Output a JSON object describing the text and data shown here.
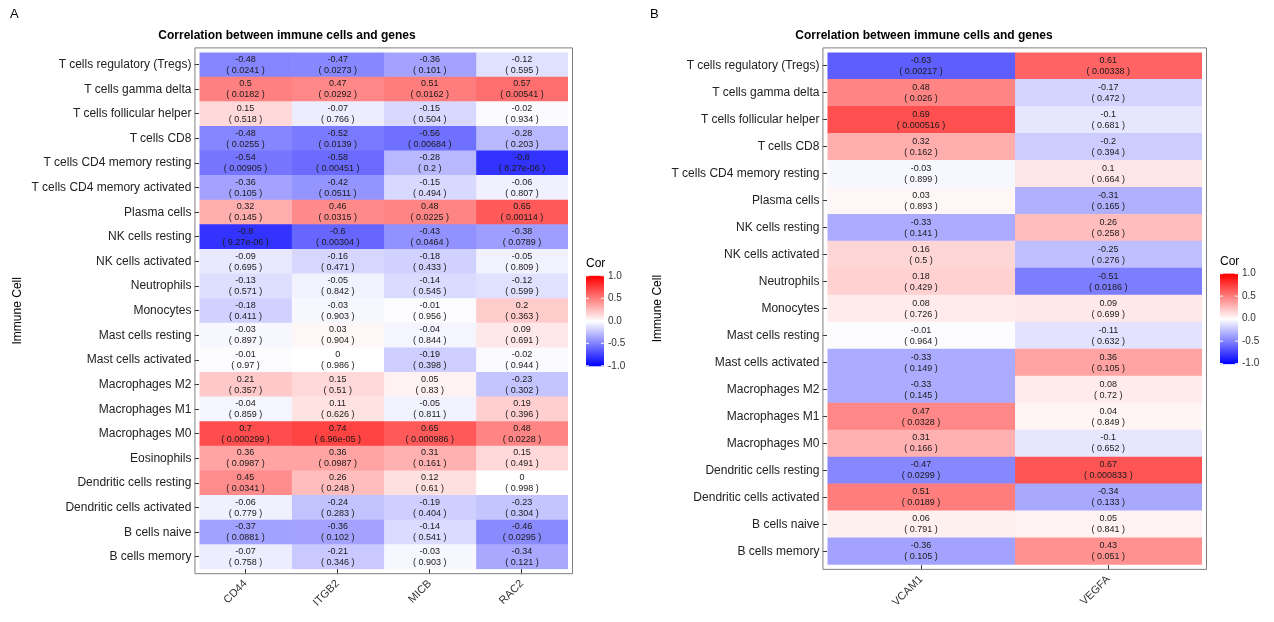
{
  "chart_data": [
    {
      "type": "heatmap",
      "title": "Correlation between immune cells and genes",
      "ylabel": "Immune Cell",
      "clabel": "Cor",
      "annotations": [
        "A"
      ],
      "categories": [
        "CD44",
        "ITGB2",
        "MICB",
        "RAC2"
      ],
      "y_categories": [
        "T cells regulatory (Tregs)",
        "T cells gamma delta",
        "T cells follicular helper",
        "T cells CD8",
        "T cells CD4 memory resting",
        "T cells CD4 memory activated",
        "Plasma cells",
        "NK cells resting",
        "NK cells activated",
        "Neutrophils",
        "Monocytes",
        "Mast cells resting",
        "Mast cells activated",
        "Macrophages M2",
        "Macrophages M1",
        "Macrophages M0",
        "Eosinophils",
        "Dendritic cells resting",
        "Dendritic cells activated",
        "B cells naive",
        "B cells memory"
      ],
      "cells": [
        [
          -0.48,
          -0.47,
          -0.36,
          -0.12
        ],
        [
          0.5,
          0.47,
          0.51,
          0.57
        ],
        [
          0.15,
          -0.07,
          -0.15,
          -0.02
        ],
        [
          -0.48,
          -0.52,
          -0.56,
          -0.28
        ],
        [
          -0.54,
          -0.58,
          -0.28,
          -0.8
        ],
        [
          -0.36,
          -0.42,
          -0.15,
          -0.06
        ],
        [
          0.32,
          0.46,
          0.48,
          0.65
        ],
        [
          -0.8,
          -0.6,
          -0.43,
          -0.38
        ],
        [
          -0.09,
          -0.16,
          -0.18,
          -0.05
        ],
        [
          -0.13,
          -0.05,
          -0.14,
          -0.12
        ],
        [
          -0.18,
          -0.03,
          -0.01,
          0.2
        ],
        [
          -0.03,
          0.03,
          -0.04,
          0.09
        ],
        [
          -0.01,
          0,
          -0.19,
          -0.02
        ],
        [
          0.21,
          0.15,
          0.05,
          -0.23
        ],
        [
          -0.04,
          0.11,
          -0.05,
          0.19
        ],
        [
          0.7,
          0.74,
          0.65,
          0.48
        ],
        [
          0.36,
          0.36,
          0.31,
          0.15
        ],
        [
          0.45,
          0.26,
          0.12,
          0
        ],
        [
          -0.06,
          -0.24,
          -0.19,
          -0.23
        ],
        [
          -0.37,
          -0.36,
          -0.14,
          -0.46
        ],
        [
          -0.07,
          -0.21,
          -0.03,
          -0.34
        ]
      ],
      "cell_labels": [
        [
          "-0.48\n( 0.0241 )",
          "-0.47\n( 0.0273 )",
          "-0.36\n( 0.101 )",
          "-0.12\n( 0.595 )"
        ],
        [
          "0.5\n( 0.0182 )",
          "0.47\n( 0.0292 )",
          "0.51\n( 0.0162 )",
          "0.57\n( 0.00541 )"
        ],
        [
          "0.15\n( 0.518 )",
          "-0.07\n( 0.766 )",
          "-0.15\n( 0.504 )",
          "-0.02\n( 0.934 )"
        ],
        [
          "-0.48\n( 0.0255 )",
          "-0.52\n( 0.0139 )",
          "-0.56\n( 0.00684 )",
          "-0.28\n( 0.203 )"
        ],
        [
          "-0.54\n( 0.00905 )",
          "-0.58\n( 0.00451 )",
          "-0.28\n( 0.2 )",
          "-0.8\n( 8.27e-06 )"
        ],
        [
          "-0.36\n( 0.105 )",
          "-0.42\n( 0.0511 )",
          "-0.15\n( 0.494 )",
          "-0.06\n( 0.807 )"
        ],
        [
          "0.32\n( 0.145 )",
          "0.46\n( 0.0315 )",
          "0.48\n( 0.0225 )",
          "0.65\n( 0.00114 )"
        ],
        [
          "-0.8\n( 9.27e-06 )",
          "-0.6\n( 0.00304 )",
          "-0.43\n( 0.0464 )",
          "-0.38\n( 0.0789 )"
        ],
        [
          "-0.09\n( 0.695 )",
          "-0.16\n( 0.471 )",
          "-0.18\n( 0.433 )",
          "-0.05\n( 0.809 )"
        ],
        [
          "-0.13\n( 0.571 )",
          "-0.05\n( 0.842 )",
          "-0.14\n( 0.545 )",
          "-0.12\n( 0.599 )"
        ],
        [
          "-0.18\n( 0.411 )",
          "-0.03\n( 0.903 )",
          "-0.01\n( 0.956 )",
          "0.2\n( 0.363 )"
        ],
        [
          "-0.03\n( 0.897 )",
          "0.03\n( 0.904 )",
          "-0.04\n( 0.844 )",
          "0.09\n( 0.691 )"
        ],
        [
          "-0.01\n( 0.97 )",
          "0\n( 0.986 )",
          "-0.19\n( 0.398 )",
          "-0.02\n( 0.944 )"
        ],
        [
          "0.21\n( 0.357 )",
          "0.15\n( 0.51 )",
          "0.05\n( 0.83 )",
          "-0.23\n( 0.302 )"
        ],
        [
          "-0.04\n( 0.859 )",
          "0.11\n( 0.626 )",
          "-0.05\n( 0.811 )",
          "0.19\n( 0.396 )"
        ],
        [
          "0.7\n( 0.000299 )",
          "0.74\n( 6.96e-05 )",
          "0.65\n( 0.000986 )",
          "0.48\n( 0.0228 )"
        ],
        [
          "0.36\n( 0.0987 )",
          "0.36\n( 0.0987 )",
          "0.31\n( 0.161 )",
          "0.15\n( 0.491 )"
        ],
        [
          "0.45\n( 0.0341 )",
          "0.26\n( 0.248 )",
          "0.12\n( 0.61 )",
          "0\n( 0.998 )"
        ],
        [
          "-0.06\n( 0.779 )",
          "-0.24\n( 0.283 )",
          "-0.19\n( 0.404 )",
          "-0.23\n( 0.304 )"
        ],
        [
          "-0.37\n( 0.0881 )",
          "-0.36\n( 0.102 )",
          "-0.14\n( 0.541 )",
          "-0.46\n( 0.0295 )"
        ],
        [
          "-0.07\n( 0.758 )",
          "-0.21\n( 0.346 )",
          "-0.03\n( 0.903 )",
          "-0.34\n( 0.121 )"
        ]
      ],
      "clim": [
        -1,
        1
      ],
      "cticks": [
        {
          "value": -1,
          "label": "-1.0"
        },
        {
          "value": -0.5,
          "label": "-0.5"
        },
        {
          "value": 0,
          "label": "0.0"
        },
        {
          "value": 0.5,
          "label": "0.5"
        },
        {
          "value": 1,
          "label": "1.0"
        }
      ]
    },
    {
      "type": "heatmap",
      "title": "Correlation between immune cells and genes",
      "ylabel": "Immune Cell",
      "clabel": "Cor",
      "annotations": [
        "B"
      ],
      "categories": [
        "VCAM1",
        "VEGFA"
      ],
      "y_categories": [
        "T cells regulatory (Tregs)",
        "T cells gamma delta",
        "T cells follicular helper",
        "T cells CD8",
        "T cells CD4 memory resting",
        "Plasma cells",
        "NK cells resting",
        "NK cells activated",
        "Neutrophils",
        "Monocytes",
        "Mast cells resting",
        "Mast cells activated",
        "Macrophages M2",
        "Macrophages M1",
        "Macrophages M0",
        "Dendritic cells resting",
        "Dendritic cells activated",
        "B cells naive",
        "B cells memory"
      ],
      "cells": [
        [
          -0.63,
          0.61
        ],
        [
          0.48,
          -0.17
        ],
        [
          0.69,
          -0.1
        ],
        [
          0.32,
          -0.2
        ],
        [
          -0.03,
          0.1
        ],
        [
          0.03,
          -0.31
        ],
        [
          -0.33,
          0.26
        ],
        [
          0.16,
          -0.25
        ],
        [
          0.18,
          -0.51
        ],
        [
          0.08,
          0.09
        ],
        [
          -0.01,
          -0.11
        ],
        [
          -0.33,
          0.36
        ],
        [
          -0.33,
          0.08
        ],
        [
          0.47,
          0.04
        ],
        [
          0.31,
          -0.1
        ],
        [
          -0.47,
          0.67
        ],
        [
          0.51,
          -0.34
        ],
        [
          0.06,
          0.05
        ],
        [
          -0.36,
          0.43
        ]
      ],
      "cell_labels": [
        [
          "-0.63\n( 0.00217 )",
          "0.61\n( 0.00338 )"
        ],
        [
          "0.48\n( 0.026 )",
          "-0.17\n( 0.472 )"
        ],
        [
          "0.69\n( 0.000516 )",
          "-0.1\n( 0.681 )"
        ],
        [
          "0.32\n( 0.162 )",
          "-0.2\n( 0.394 )"
        ],
        [
          "-0.03\n( 0.899 )",
          "0.1\n( 0.664 )"
        ],
        [
          "0.03\n( 0.893 )",
          "-0.31\n( 0.165 )"
        ],
        [
          "-0.33\n( 0.141 )",
          "0.26\n( 0.258 )"
        ],
        [
          "0.16\n( 0.5 )",
          "-0.25\n( 0.276 )"
        ],
        [
          "0.18\n( 0.429 )",
          "-0.51\n( 0.0186 )"
        ],
        [
          "0.08\n( 0.726 )",
          "0.09\n( 0.699 )"
        ],
        [
          "-0.01\n( 0.964 )",
          "-0.11\n( 0.632 )"
        ],
        [
          "-0.33\n( 0.149 )",
          "0.36\n( 0.105 )"
        ],
        [
          "-0.33\n( 0.145 )",
          "0.08\n( 0.72 )"
        ],
        [
          "0.47\n( 0.0328 )",
          "0.04\n( 0.849 )"
        ],
        [
          "0.31\n( 0.166 )",
          "-0.1\n( 0.652 )"
        ],
        [
          "-0.47\n( 0.0299 )",
          "0.67\n( 0.000833 )"
        ],
        [
          "0.51\n( 0.0189 )",
          "-0.34\n( 0.133 )"
        ],
        [
          "0.06\n( 0.791 )",
          "0.05\n( 0.841 )"
        ],
        [
          "-0.36\n( 0.105 )",
          "0.43\n( 0.051 )"
        ]
      ],
      "clim": [
        -1,
        1
      ],
      "cticks": [
        {
          "value": -1,
          "label": "-1.0"
        },
        {
          "value": -0.5,
          "label": "-0.5"
        },
        {
          "value": 0,
          "label": "0.0"
        },
        {
          "value": 0.5,
          "label": "0.5"
        },
        {
          "value": 1,
          "label": "1.0"
        }
      ]
    }
  ]
}
